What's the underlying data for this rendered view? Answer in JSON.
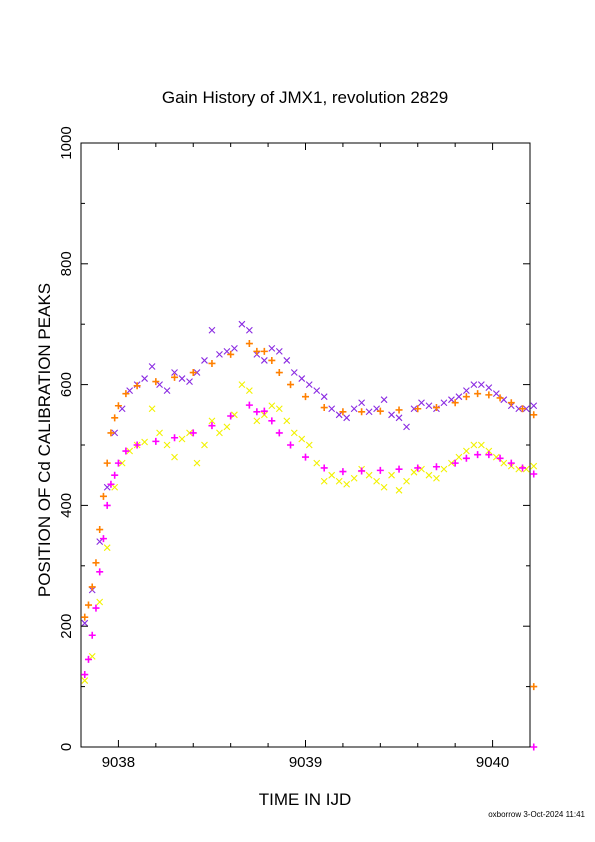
{
  "chart_data": {
    "type": "scatter",
    "title": "Gain History of JMX1, revolution 2829",
    "xlabel": "TIME IN IJD",
    "ylabel": "POSITION OF Cd CALIBRATION PEAKS",
    "xlim": [
      9037.8,
      9040.2
    ],
    "ylim": [
      0,
      1000
    ],
    "xticks": [
      9038,
      9039,
      9040
    ],
    "xtick_labels": [
      "9038",
      "9039",
      "9040"
    ],
    "yticks": [
      0,
      200,
      400,
      600,
      800,
      1000
    ],
    "ytick_labels": [
      "0",
      "200",
      "400",
      "600",
      "800",
      "1000"
    ],
    "grid": false,
    "legend": "none",
    "footer": "oxborrow  3-Oct-2024 11:41",
    "series": [
      {
        "marker": "x",
        "color": "#8a2be2",
        "x": [
          9037.82,
          9037.86,
          9037.9,
          9037.94,
          9037.98,
          9038.02,
          9038.06,
          9038.1,
          9038.14,
          9038.18,
          9038.22,
          9038.26,
          9038.3,
          9038.34,
          9038.38,
          9038.42,
          9038.46,
          9038.5,
          9038.54,
          9038.58,
          9038.62,
          9038.66,
          9038.7,
          9038.74,
          9038.78,
          9038.82,
          9038.86,
          9038.9,
          9038.94,
          9038.98,
          9039.02,
          9039.06,
          9039.1,
          9039.14,
          9039.18,
          9039.22,
          9039.26,
          9039.3,
          9039.34,
          9039.38,
          9039.42,
          9039.46,
          9039.5,
          9039.54,
          9039.58,
          9039.62,
          9039.66,
          9039.7,
          9039.74,
          9039.78,
          9039.82,
          9039.86,
          9039.9,
          9039.94,
          9039.98,
          9040.02,
          9040.06,
          9040.1,
          9040.14,
          9040.18,
          9040.22
        ],
        "y": [
          205,
          260,
          340,
          430,
          520,
          560,
          590,
          600,
          610,
          630,
          600,
          590,
          620,
          610,
          605,
          620,
          640,
          690,
          650,
          655,
          660,
          700,
          690,
          650,
          640,
          660,
          655,
          640,
          620,
          610,
          600,
          590,
          580,
          560,
          550,
          545,
          560,
          570,
          555,
          560,
          575,
          550,
          545,
          530,
          560,
          570,
          565,
          560,
          570,
          575,
          580,
          590,
          600,
          600,
          595,
          585,
          575,
          565,
          560,
          560,
          565
        ]
      },
      {
        "marker": "x",
        "color": "#f2f200",
        "x": [
          9037.82,
          9037.86,
          9037.9,
          9037.94,
          9037.98,
          9038.02,
          9038.06,
          9038.1,
          9038.14,
          9038.18,
          9038.22,
          9038.26,
          9038.3,
          9038.34,
          9038.38,
          9038.42,
          9038.46,
          9038.5,
          9038.54,
          9038.58,
          9038.62,
          9038.66,
          9038.7,
          9038.74,
          9038.78,
          9038.82,
          9038.86,
          9038.9,
          9038.94,
          9038.98,
          9039.02,
          9039.06,
          9039.1,
          9039.14,
          9039.18,
          9039.22,
          9039.26,
          9039.3,
          9039.34,
          9039.38,
          9039.42,
          9039.46,
          9039.5,
          9039.54,
          9039.58,
          9039.62,
          9039.66,
          9039.7,
          9039.74,
          9039.78,
          9039.82,
          9039.86,
          9039.9,
          9039.94,
          9039.98,
          9040.02,
          9040.06,
          9040.1,
          9040.14,
          9040.18,
          9040.22
        ],
        "y": [
          110,
          150,
          240,
          330,
          430,
          470,
          490,
          500,
          505,
          560,
          520,
          500,
          480,
          510,
          520,
          470,
          500,
          540,
          520,
          530,
          550,
          600,
          590,
          540,
          550,
          565,
          560,
          540,
          520,
          510,
          500,
          470,
          440,
          450,
          440,
          435,
          445,
          460,
          450,
          440,
          430,
          450,
          425,
          440,
          455,
          460,
          450,
          445,
          460,
          470,
          480,
          490,
          500,
          500,
          490,
          480,
          470,
          465,
          460,
          460,
          465
        ]
      },
      {
        "marker": "+",
        "color": "#ff8000",
        "x": [
          9037.82,
          9037.84,
          9037.86,
          9037.88,
          9037.9,
          9037.92,
          9037.94,
          9037.96,
          9037.98,
          9038.0,
          9038.04,
          9038.1,
          9038.2,
          9038.3,
          9038.4,
          9038.5,
          9038.6,
          9038.7,
          9038.74,
          9038.78,
          9038.82,
          9038.86,
          9038.92,
          9039.0,
          9039.1,
          9039.2,
          9039.3,
          9039.4,
          9039.5,
          9039.6,
          9039.7,
          9039.8,
          9039.86,
          9039.92,
          9039.98,
          9040.04,
          9040.1,
          9040.16,
          9040.22
        ],
        "y": [
          215,
          235,
          265,
          305,
          360,
          415,
          470,
          520,
          545,
          565,
          585,
          598,
          605,
          612,
          620,
          635,
          650,
          668,
          655,
          655,
          640,
          620,
          600,
          580,
          562,
          555,
          555,
          556,
          558,
          560,
          562,
          570,
          580,
          585,
          583,
          578,
          570,
          560,
          550
        ]
      },
      {
        "marker": "+",
        "color": "#ff00ff",
        "x": [
          9037.82,
          9037.84,
          9037.86,
          9037.88,
          9037.9,
          9037.92,
          9037.94,
          9037.96,
          9037.98,
          9038.0,
          9038.04,
          9038.1,
          9038.2,
          9038.3,
          9038.4,
          9038.5,
          9038.6,
          9038.7,
          9038.74,
          9038.78,
          9038.82,
          9038.86,
          9038.92,
          9039.0,
          9039.1,
          9039.2,
          9039.3,
          9039.4,
          9039.5,
          9039.6,
          9039.7,
          9039.8,
          9039.86,
          9039.92,
          9039.98,
          9040.04,
          9040.1,
          9040.16,
          9040.22
        ],
        "y": [
          120,
          145,
          185,
          230,
          290,
          345,
          400,
          435,
          450,
          470,
          490,
          500,
          506,
          512,
          520,
          532,
          548,
          566,
          555,
          556,
          540,
          520,
          500,
          480,
          462,
          456,
          457,
          458,
          460,
          462,
          464,
          470,
          478,
          484,
          484,
          478,
          470,
          462,
          452
        ]
      },
      {
        "marker": "+",
        "color": "#ff8000",
        "x": [
          9040.22
        ],
        "y": [
          100
        ]
      },
      {
        "marker": "+",
        "color": "#ff00ff",
        "x": [
          9040.22
        ],
        "y": [
          0
        ]
      }
    ]
  }
}
